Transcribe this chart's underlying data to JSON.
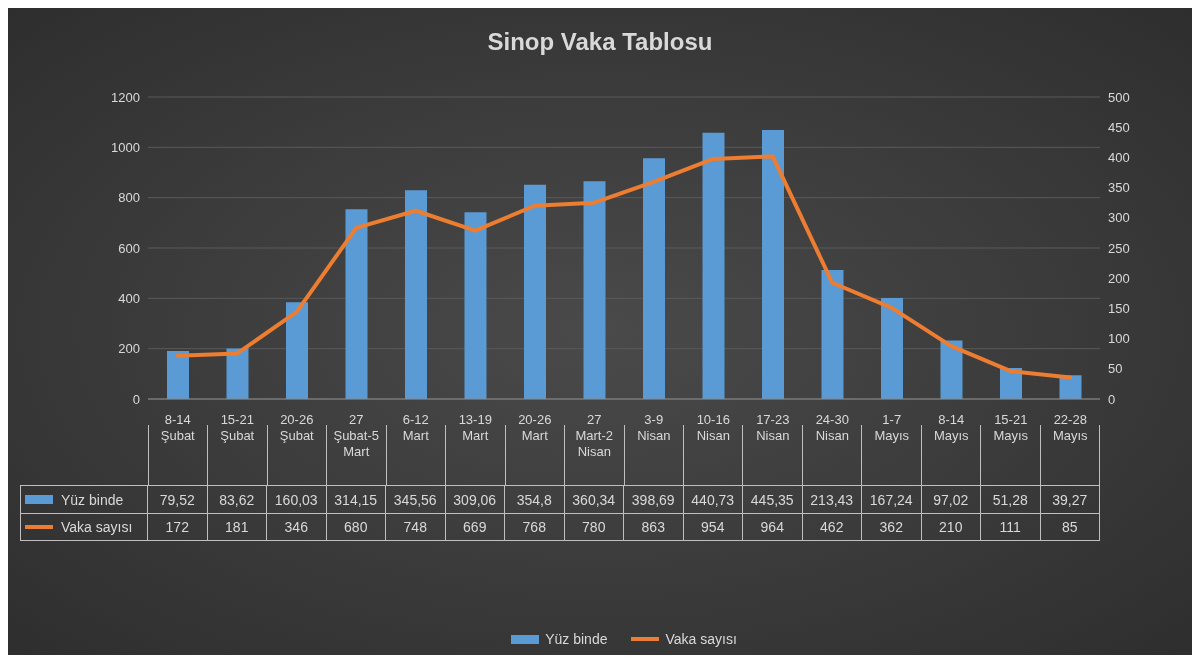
{
  "chart_data": {
    "type": "bar",
    "title": "Sinop Vaka Tablosu",
    "categories": [
      "8-14 Şubat",
      "15-21 Şubat",
      "20-26 Şubat",
      "27 Şubat-5 Mart",
      "6-12 Mart",
      "13-19 Mart",
      "20-26 Mart",
      "27 Mart-2 Nisan",
      "3-9 Nisan",
      "10-16 Nisan",
      "17-23 Nisan",
      "24-30 Nisan",
      "1-7 Mayıs",
      "8-14 Mayıs",
      "15-21 Mayıs",
      "22-28 Mayıs"
    ],
    "series": [
      {
        "name": "Yüz binde",
        "axis": "y2",
        "color": "#5b9bd5",
        "values": [
          79.52,
          83.62,
          160.03,
          314.15,
          345.56,
          309.06,
          354.8,
          360.34,
          398.69,
          440.73,
          445.35,
          213.43,
          167.24,
          97.02,
          51.28,
          39.27
        ],
        "value_labels": [
          "79,52",
          "83,62",
          "160,03",
          "314,15",
          "345,56",
          "309,06",
          "354,8",
          "360,34",
          "398,69",
          "440,73",
          "445,35",
          "213,43",
          "167,24",
          "97,02",
          "51,28",
          "39,27"
        ]
      },
      {
        "name": "Vaka sayısı",
        "type": "line",
        "color": "#ed7d31",
        "values": [
          172,
          181,
          346,
          680,
          748,
          669,
          768,
          780,
          863,
          954,
          964,
          462,
          362,
          210,
          111,
          85
        ],
        "value_labels": [
          "172",
          "181",
          "346",
          "680",
          "748",
          "669",
          "768",
          "780",
          "863",
          "954",
          "964",
          "462",
          "362",
          "210",
          "111",
          "85"
        ]
      }
    ],
    "ylim": [
      0,
      1200
    ],
    "yticks": [
      0,
      200,
      400,
      600,
      800,
      1000,
      1200
    ],
    "y2lim": [
      0,
      500
    ],
    "y2ticks": [
      0,
      50,
      100,
      150,
      200,
      250,
      300,
      350,
      400,
      450,
      500
    ],
    "grid": "y",
    "legend": "bottom",
    "marker": "none",
    "line_style": "solid"
  }
}
